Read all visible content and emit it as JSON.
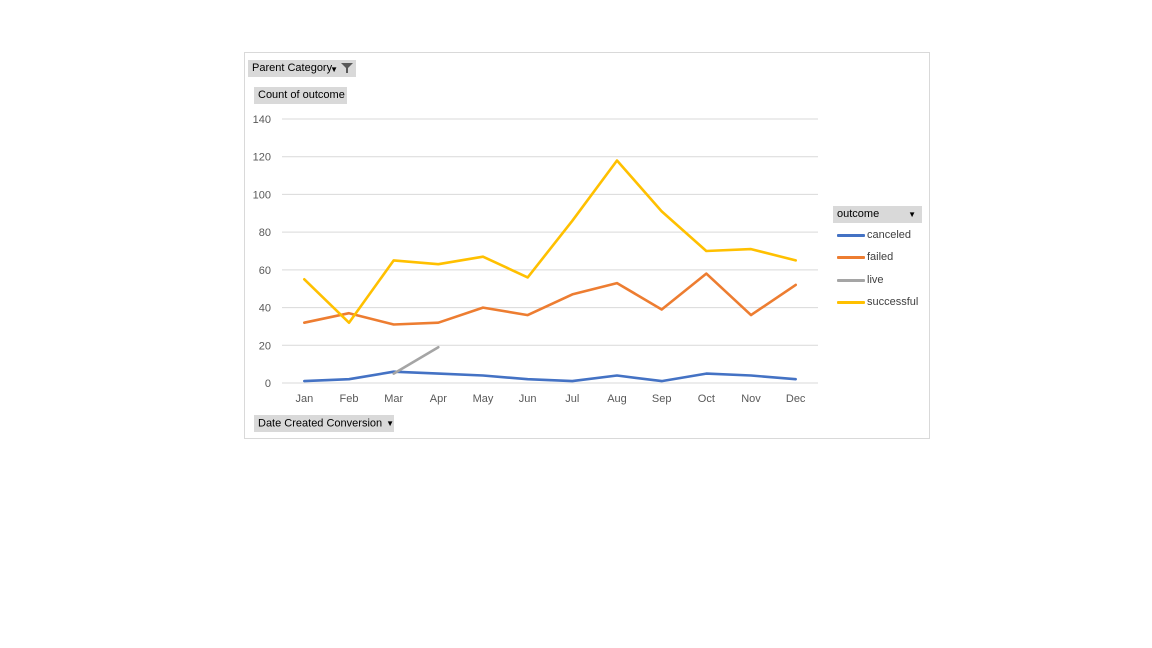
{
  "pivot": {
    "parent_category_label": "Parent Category",
    "value_field_label": "Count of outcome",
    "axis_field_label": "Date Created Conversion",
    "legend_field_label": "outcome"
  },
  "icons": {
    "filter": "funnel-filter-icon",
    "dropdown": "dropdown-arrow-icon"
  },
  "chart_data": {
    "type": "line",
    "title": "",
    "xlabel": "",
    "ylabel": "",
    "ylim": [
      0,
      140
    ],
    "yticks": [
      0,
      20,
      40,
      60,
      80,
      100,
      120,
      140
    ],
    "grid": true,
    "legend_position": "right",
    "categories": [
      "Jan",
      "Feb",
      "Mar",
      "Apr",
      "May",
      "Jun",
      "Jul",
      "Aug",
      "Sep",
      "Oct",
      "Nov",
      "Dec"
    ],
    "series": [
      {
        "name": "canceled",
        "color": "#4472C4",
        "values": [
          1,
          2,
          6,
          5,
          4,
          2,
          1,
          4,
          1,
          5,
          4,
          2
        ]
      },
      {
        "name": "failed",
        "color": "#ED7D31",
        "values": [
          32,
          37,
          31,
          32,
          40,
          36,
          47,
          53,
          39,
          58,
          36,
          52
        ]
      },
      {
        "name": "live",
        "color": "#A5A5A5",
        "values": [
          null,
          null,
          5,
          19,
          null,
          null,
          null,
          null,
          null,
          null,
          null,
          null
        ]
      },
      {
        "name": "successful",
        "color": "#FFC000",
        "values": [
          55,
          32,
          65,
          63,
          67,
          56,
          86,
          118,
          91,
          70,
          71,
          65
        ]
      }
    ]
  }
}
